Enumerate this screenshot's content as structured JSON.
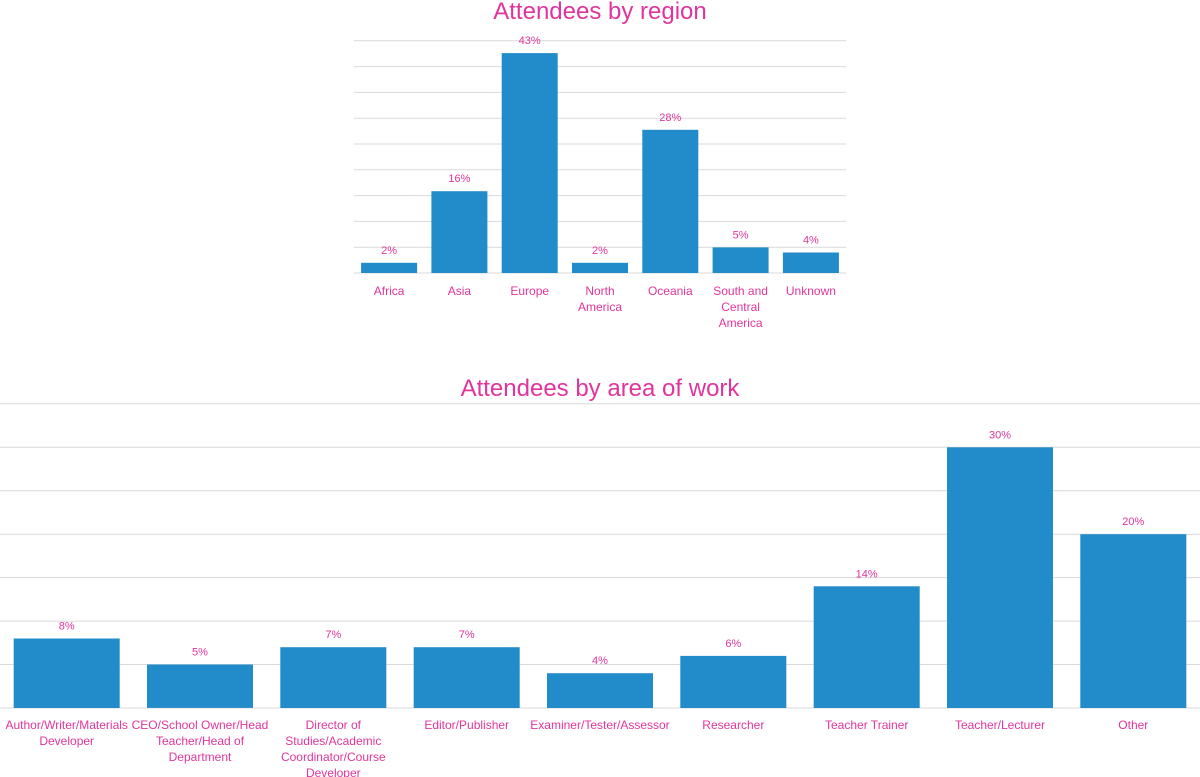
{
  "colors": {
    "bar": "#228bc9",
    "text": "#e0359c",
    "grid": "#d9d9d9"
  },
  "chart_data": [
    {
      "type": "bar",
      "title": "Attendees by region",
      "categories": [
        "Africa",
        "Asia",
        "Europe",
        "North America",
        "Oceania",
        "South and Central America",
        "Unknown"
      ],
      "values": [
        2,
        16,
        43,
        2,
        28,
        5,
        4
      ],
      "value_labels": [
        "2%",
        "16%",
        "43%",
        "2%",
        "28%",
        "5%",
        "4%"
      ],
      "ylim": [
        0,
        45
      ],
      "grid": true
    },
    {
      "type": "bar",
      "title": "Attendees by area of work",
      "categories": [
        "Author/Writer/Materials Developer",
        "CEO/School Owner/Head Teacher/Head of Department",
        "Director of Studies/Academic Coordinator/Course Developer",
        "Editor/Publisher",
        "Examiner/Tester/Assessor",
        "Researcher",
        "Teacher Trainer",
        "Teacher/Lecturer",
        "Other"
      ],
      "values": [
        8,
        5,
        7,
        7,
        4,
        6,
        14,
        30,
        20
      ],
      "value_labels": [
        "8%",
        "5%",
        "7%",
        "7%",
        "4%",
        "6%",
        "14%",
        "30%",
        "20%"
      ],
      "ylim": [
        0,
        35
      ],
      "grid": true
    }
  ]
}
